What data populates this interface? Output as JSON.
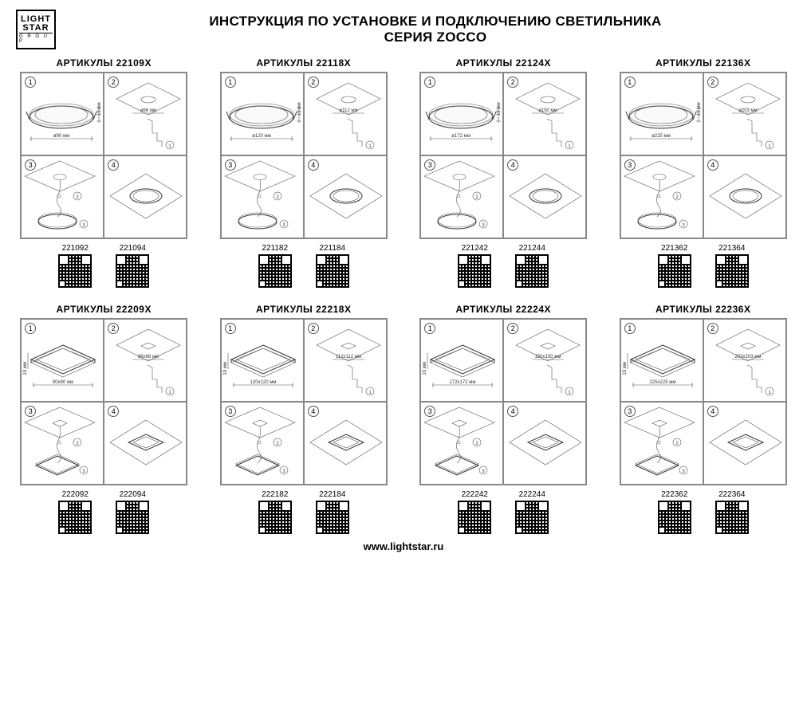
{
  "logo": {
    "line1": "LIGHT",
    "line2": "STAR",
    "line3": "G R O U P"
  },
  "title": "ИНСТРУКЦИЯ ПО УСТАНОВКЕ И ПОДКЛЮЧЕНИЮ СВЕТИЛЬНИКА",
  "subtitle": "СЕРИЯ ZOCCO",
  "footer": "www.lightstar.ru",
  "colors": {
    "border": "#888888",
    "stroke": "#333333",
    "bg": "#ffffff"
  },
  "products": [
    {
      "title": "АРТИКУЛЫ 22109X",
      "shape": "round",
      "dim1": "ø90 мм",
      "dim1h": "19 мм",
      "dim2": "ø66 мм",
      "qr": [
        "221092",
        "221094"
      ]
    },
    {
      "title": "АРТИКУЛЫ 22118X",
      "shape": "round",
      "dim1": "ø120 мм",
      "dim1h": "19 мм",
      "dim2": "ø112 мм",
      "qr": [
        "221182",
        "221184"
      ]
    },
    {
      "title": "АРТИКУЛЫ 22124X",
      "shape": "round",
      "dim1": "ø172 мм",
      "dim1h": "19 мм",
      "dim2": "ø150 мм",
      "qr": [
        "221242",
        "221244"
      ]
    },
    {
      "title": "АРТИКУЛЫ 22136X",
      "shape": "round",
      "dim1": "ø225 мм",
      "dim1h": "19 мм",
      "dim2": "ø203 мм",
      "qr": [
        "221362",
        "221364"
      ]
    },
    {
      "title": "АРТИКУЛЫ 22209X",
      "shape": "square",
      "dim1": "90x90 мм",
      "dim1h": "19 мм",
      "dim2": "66x66 мм",
      "qr": [
        "222092",
        "222094"
      ]
    },
    {
      "title": "АРТИКУЛЫ 22218X",
      "shape": "square",
      "dim1": "120x120 мм",
      "dim1h": "19 мм",
      "dim2": "112x112 мм",
      "qr": [
        "222182",
        "222184"
      ]
    },
    {
      "title": "АРТИКУЛЫ 22224X",
      "shape": "square",
      "dim1": "172x172 мм",
      "dim1h": "19 мм",
      "dim2": "150x150 мм",
      "qr": [
        "222242",
        "222244"
      ]
    },
    {
      "title": "АРТИКУЛЫ 22236X",
      "shape": "square",
      "dim1": "225x225 мм",
      "dim1h": "19 мм",
      "dim2": "203x203 мм",
      "qr": [
        "222362",
        "222364"
      ]
    }
  ]
}
